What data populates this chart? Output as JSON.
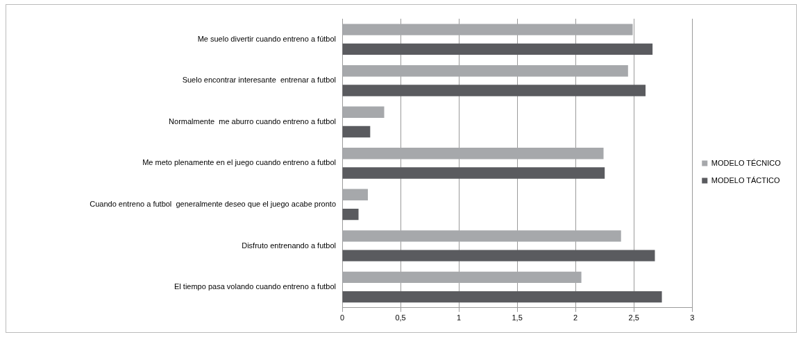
{
  "chart_data": {
    "type": "bar",
    "orientation": "horizontal",
    "categories": [
      "Me suelo divertir cuando entreno a fútbol",
      "Suelo encontrar interesante  entrenar a futbol",
      "Normalmente  me aburro cuando entreno a futbol",
      "Me meto plenamente en el juego cuando entreno a futbol",
      "Cuando entreno a futbol  generalmente deseo que el juego acabe pronto",
      "Disfruto entrenando a futbol",
      "El tiempo pasa volando cuando entreno a futbol"
    ],
    "series": [
      {
        "name": "MODELO TÉCNICO",
        "color": "#a6a8ab",
        "values": [
          2.49,
          2.45,
          0.36,
          2.24,
          0.22,
          2.39,
          2.05
        ]
      },
      {
        "name": "MODELO TÁCTICO",
        "color": "#5a5b5f",
        "values": [
          2.66,
          2.6,
          0.24,
          2.25,
          0.14,
          2.68,
          2.74
        ]
      }
    ],
    "xlim": [
      0,
      3
    ],
    "xticks": [
      0,
      {
        "value": 0.5,
        "label": "0,5"
      },
      1,
      {
        "value": 1.5,
        "label": "1,5"
      },
      2,
      {
        "value": 2.5,
        "label": "2,5"
      },
      3
    ],
    "grid": "x",
    "legend": "right"
  }
}
